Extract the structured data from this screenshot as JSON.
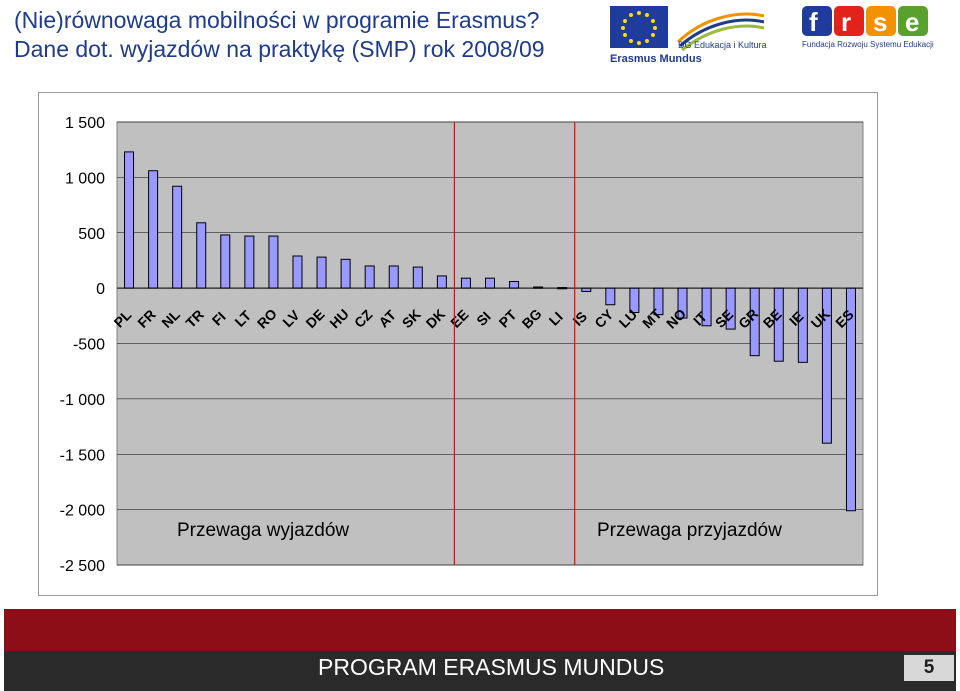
{
  "slide": {
    "title_line1": "(Nie)równowaga mobilności w programie Erasmus?",
    "title_line2": "Dane dot. wyjazdów na praktykę (SMP) rok 2008/09",
    "logo_erasmus_text1": "DG Edukacja i Kultura",
    "logo_erasmus_text2": "Erasmus Mundus",
    "logo_frse_caption": "Fundacja Rozwoju Systemu Edukacji",
    "footer_program": "PROGRAM ERASMUS MUNDUS",
    "page_number": "5",
    "colors": {
      "title": "#1f3b8c",
      "footer_red": "#8c0f17",
      "bar_fill": "#9999ff",
      "plot_bg": "#c0c0c0",
      "divider": "#ff0000"
    }
  },
  "chart_data": {
    "type": "bar",
    "categories": [
      "PL",
      "FR",
      "NL",
      "TR",
      "FI",
      "LT",
      "RO",
      "LV",
      "DE",
      "HU",
      "CZ",
      "AT",
      "SK",
      "DK",
      "EE",
      "SI",
      "PT",
      "BG",
      "LI",
      "IS",
      "CY",
      "LU",
      "MT",
      "NO",
      "IT",
      "SE",
      "GR",
      "BE",
      "IE",
      "UK",
      "ES"
    ],
    "values": [
      1230,
      1060,
      920,
      590,
      480,
      470,
      470,
      290,
      280,
      260,
      200,
      200,
      190,
      110,
      90,
      90,
      60,
      10,
      5,
      -30,
      -150,
      -220,
      -240,
      -270,
      -340,
      -370,
      -610,
      -660,
      -670,
      -1400,
      -2010
    ],
    "ylim": [
      -2500,
      1500
    ],
    "yticks": [
      1500,
      1000,
      500,
      0,
      -500,
      -1000,
      -1500,
      -2000,
      -2500
    ],
    "ytick_labels": [
      "1 500",
      "1 000",
      "500",
      "0",
      "-500",
      "-1 000",
      "-1 500",
      "-2 000",
      "-2 500"
    ],
    "grid": true,
    "dividers_after": [
      "DK",
      "LI"
    ],
    "annotations": [
      "Przewaga wyjazdów",
      "Przewaga przyjazdów"
    ],
    "title": "",
    "xlabel": "",
    "ylabel": ""
  }
}
